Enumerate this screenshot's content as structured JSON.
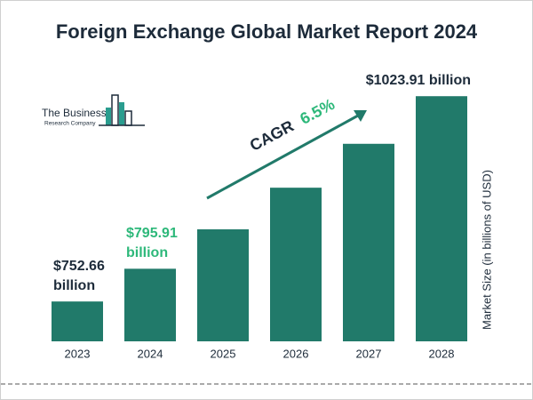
{
  "chart_data": {
    "type": "bar",
    "title": "Foreign Exchange Global Market Report 2024",
    "categories": [
      "2023",
      "2024",
      "2025",
      "2026",
      "2027",
      "2028"
    ],
    "values": [
      752.66,
      795.91,
      848,
      903,
      961,
      1023.91
    ],
    "value_labels": [
      "$752.66 billion",
      "$795.91 billion",
      null,
      null,
      null,
      "$1023.91 billion"
    ],
    "value_label_colors": [
      "#1d2b3a",
      "#2db87a",
      null,
      null,
      null,
      "#1d2b3a"
    ],
    "color": "#217a6a",
    "ylim": [
      700,
      1050
    ],
    "y_axis_label": "Market Size (in billions of USD)",
    "annotation": {
      "label": "CAGR",
      "value": "6.5%"
    },
    "logo": {
      "line1": "The Business",
      "line2": "Research Company"
    }
  }
}
